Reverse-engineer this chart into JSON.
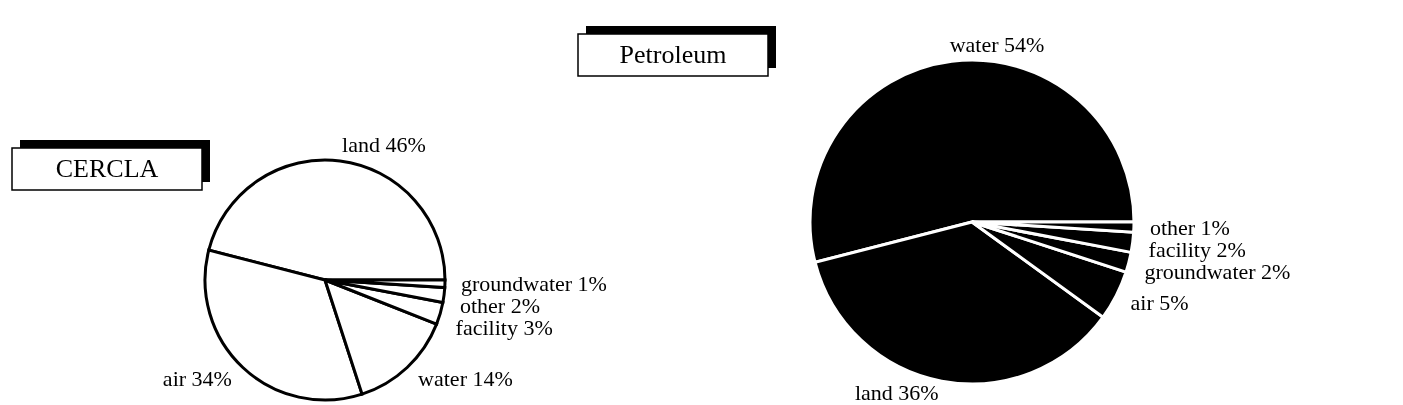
{
  "chart_data": [
    {
      "type": "pie",
      "title": "CERCLA",
      "categories": [
        "land",
        "air",
        "water",
        "facility",
        "other",
        "groundwater"
      ],
      "values": [
        46,
        34,
        14,
        3,
        2,
        1
      ],
      "value_labels": [
        "46%",
        "34%",
        "14%",
        "3%",
        "2%",
        "1%"
      ],
      "colors": [
        "#ffffff",
        "#ffffff",
        "#ffffff",
        "#ffffff",
        "#ffffff",
        "#ffffff"
      ]
    },
    {
      "type": "pie",
      "title": "Petroleum",
      "categories": [
        "water",
        "land",
        "air",
        "groundwater",
        "facility",
        "other"
      ],
      "values": [
        54,
        36,
        5,
        2,
        2,
        1
      ],
      "value_labels": [
        "54%",
        "36%",
        "5%",
        "2%",
        "2%",
        "1%"
      ],
      "colors": [
        "#000000",
        "#000000",
        "#000000",
        "#000000",
        "#000000",
        "#000000"
      ]
    }
  ]
}
